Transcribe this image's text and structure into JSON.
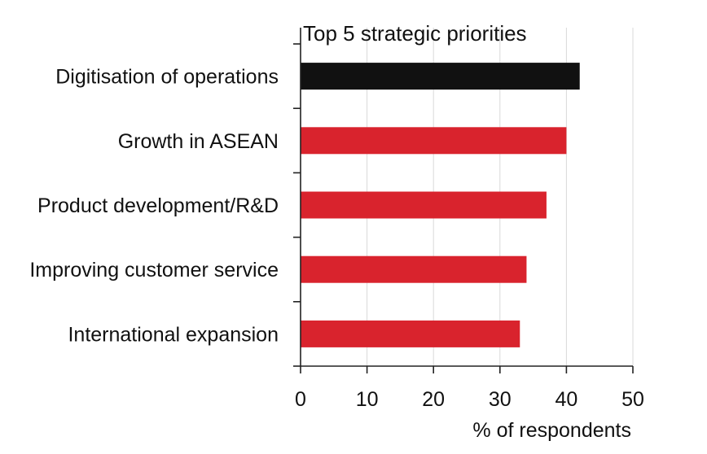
{
  "chart_data": {
    "type": "bar",
    "orientation": "horizontal",
    "title": "Top 5 strategic priorities",
    "xlabel": "% of respondents",
    "ylabel": "",
    "categories": [
      "Digitisation of operations",
      "Growth in ASEAN",
      "Product development/R&D",
      "Improving customer service",
      "International expansion"
    ],
    "values": [
      42,
      40,
      37,
      34,
      33
    ],
    "bar_colors": [
      "#111111",
      "#d9232d",
      "#d9232d",
      "#d9232d",
      "#d9232d"
    ],
    "xlim": [
      0,
      50
    ],
    "xticks": [
      "0",
      "10",
      "20",
      "30",
      "40",
      "50"
    ],
    "grid": "vertical",
    "legend": "none"
  }
}
